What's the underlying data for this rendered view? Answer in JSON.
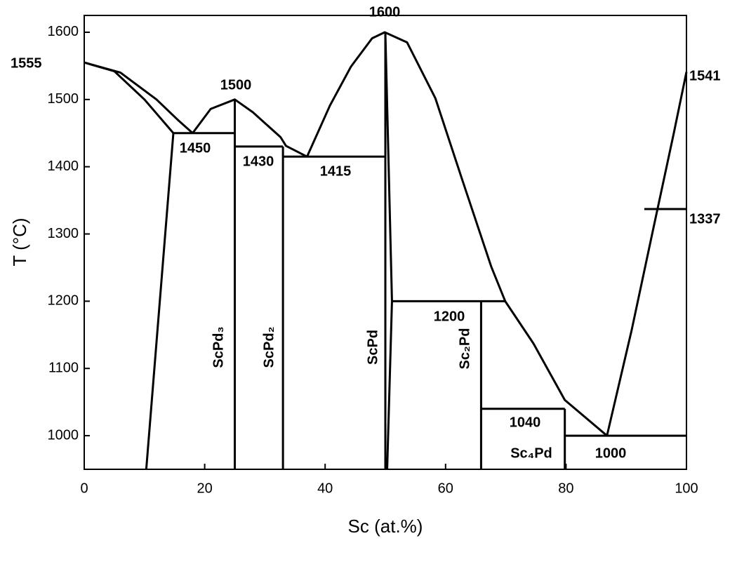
{
  "chart_data": {
    "type": "line",
    "x_label": "Sc (at.%)",
    "y_label": "T (°C)",
    "xlim": [
      0,
      100
    ],
    "ylim": [
      950,
      1625
    ],
    "xticks": [
      0,
      20,
      40,
      60,
      80,
      100
    ],
    "yticks": [
      1000,
      1100,
      1200,
      1300,
      1400,
      1500,
      1600
    ],
    "series": [
      {
        "color": "#000000",
        "x": [
          0,
          6,
          12,
          15.5,
          18
        ],
        "values": [
          1555,
          1540,
          1500,
          1470,
          1450
        ]
      },
      {
        "color": "#000000",
        "x": [
          0,
          5,
          10,
          14.8
        ],
        "values": [
          1555,
          1542,
          1500,
          1450
        ]
      },
      {
        "color": "#000000",
        "x": [
          14.8,
          10.3
        ],
        "values": [
          1450,
          950
        ]
      },
      {
        "color": "#000000",
        "x": [
          14.8,
          25
        ],
        "values": [
          1450,
          1450
        ]
      },
      {
        "color": "#000000",
        "x": [
          18,
          21,
          25,
          28,
          32.6,
          33.5,
          37
        ],
        "values": [
          1450,
          1486,
          1500,
          1481,
          1444,
          1431,
          1415
        ]
      },
      {
        "color": "#000000",
        "x": [
          25,
          25
        ],
        "values": [
          1500,
          950
        ]
      },
      {
        "color": "#000000",
        "x": [
          25,
          33
        ],
        "values": [
          1430,
          1430
        ]
      },
      {
        "color": "#000000",
        "x": [
          33,
          33
        ],
        "values": [
          1430,
          950
        ]
      },
      {
        "color": "#000000",
        "x": [
          33,
          50
        ],
        "values": [
          1415,
          1415
        ]
      },
      {
        "color": "#000000",
        "x": [
          37,
          40.8,
          44.3,
          47.8,
          49.9,
          53.6,
          58.3,
          62.9,
          67.6,
          69.9,
          74.6,
          79.8,
          86.8
        ],
        "values": [
          1415,
          1491,
          1549,
          1591,
          1600,
          1585,
          1502,
          1377,
          1251,
          1200,
          1137,
          1053,
          1000
        ]
      },
      {
        "color": "#000000",
        "x": [
          50,
          50
        ],
        "values": [
          1600,
          950
        ]
      },
      {
        "color": "#000000",
        "x": [
          50,
          51.1
        ],
        "values": [
          1600,
          1200
        ]
      },
      {
        "color": "#000000",
        "x": [
          51.1,
          50.3
        ],
        "values": [
          1200,
          950
        ]
      },
      {
        "color": "#000000",
        "x": [
          51.1,
          69.9
        ],
        "values": [
          1200,
          1200
        ]
      },
      {
        "color": "#000000",
        "x": [
          65.9,
          65.9
        ],
        "values": [
          1200,
          950
        ]
      },
      {
        "color": "#000000",
        "x": [
          65.9,
          79.8
        ],
        "values": [
          1040,
          1040
        ]
      },
      {
        "color": "#000000",
        "x": [
          79.8,
          79.8
        ],
        "values": [
          1040,
          950
        ]
      },
      {
        "color": "#000000",
        "x": [
          79.8,
          100
        ],
        "values": [
          1000,
          1000
        ]
      },
      {
        "color": "#000000",
        "x": [
          86.8,
          90.9,
          94.4,
          97.9,
          100
        ],
        "values": [
          1000,
          1157,
          1304,
          1450,
          1541
        ]
      },
      {
        "color": "#000000",
        "x": [
          93,
          100
        ],
        "values": [
          1337,
          1337
        ]
      }
    ],
    "annotations": [
      1555,
      1500,
      1450,
      1430,
      1415,
      1600,
      1200,
      1040,
      1000,
      1541,
      1337
    ],
    "phase_labels": [
      "ScPd₃",
      "ScPd₂",
      "ScPd",
      "Sc₂Pd",
      "Sc₄Pd"
    ]
  }
}
